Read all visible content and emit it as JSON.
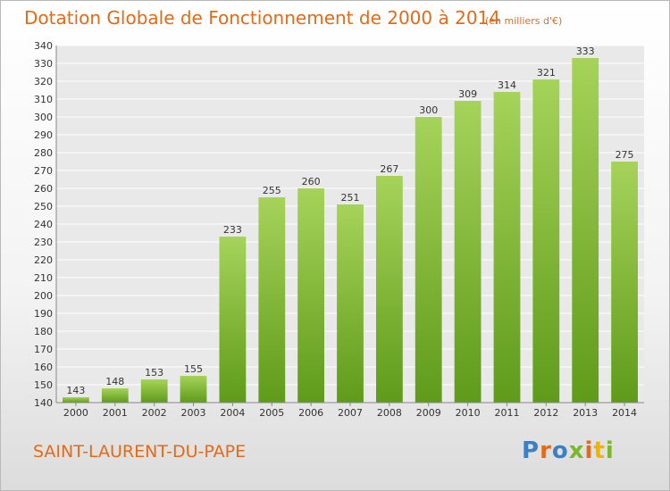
{
  "header": {
    "title": "Dotation Globale de Fonctionnement de 2000 à 2014",
    "subtitle": "(en milliers d'€)"
  },
  "footer": {
    "commune": "SAINT-LAURENT-DU-PAPE",
    "logo_text": "Proxiti"
  },
  "colors": {
    "accent": "#e46a17",
    "bar_light": "#a6d35a",
    "bar_dark": "#5f9b1a",
    "grid": "#ffffff"
  },
  "chart_data": {
    "type": "bar",
    "title": "Dotation Globale de Fonctionnement de 2000 à 2014",
    "subtitle": "(en milliers d'€)",
    "categories": [
      "2000",
      "2001",
      "2002",
      "2003",
      "2004",
      "2005",
      "2006",
      "2007",
      "2008",
      "2009",
      "2010",
      "2011",
      "2012",
      "2013",
      "2014"
    ],
    "values": [
      143,
      148,
      153,
      155,
      233,
      255,
      260,
      251,
      267,
      300,
      309,
      314,
      321,
      333,
      275
    ],
    "ylim": [
      140,
      340
    ],
    "yticks": [
      140,
      150,
      160,
      170,
      180,
      190,
      200,
      210,
      220,
      230,
      240,
      250,
      260,
      270,
      280,
      290,
      300,
      310,
      320,
      330,
      340
    ],
    "grid": true,
    "legend": "none"
  }
}
